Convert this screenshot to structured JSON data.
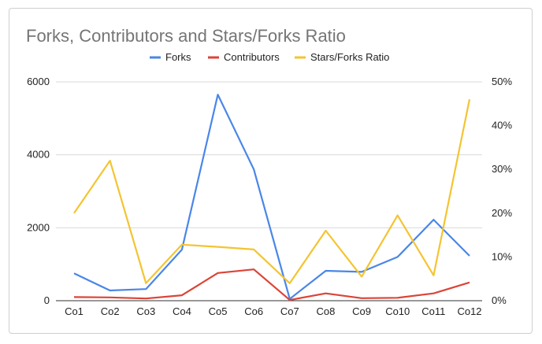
{
  "chart_data": {
    "type": "line",
    "title": "Forks, Contributors and Stars/Forks Ratio",
    "categories": [
      "Co1",
      "Co2",
      "Co3",
      "Co4",
      "Co5",
      "Co6",
      "Co7",
      "Co8",
      "Co9",
      "Co10",
      "Co11",
      "Co12"
    ],
    "series": [
      {
        "name": "Forks",
        "axis": "left",
        "color": "#4a86e8",
        "values": [
          750,
          280,
          320,
          1400,
          5650,
          3600,
          50,
          820,
          790,
          1200,
          2220,
          1230
        ]
      },
      {
        "name": "Contributors",
        "axis": "left",
        "color": "#db4437",
        "values": [
          100,
          90,
          60,
          150,
          760,
          860,
          20,
          200,
          70,
          80,
          200,
          500
        ]
      },
      {
        "name": "Stars/Forks Ratio",
        "axis": "right",
        "color": "#f4c431",
        "values": [
          0.2,
          0.32,
          0.04,
          0.128,
          0.123,
          0.117,
          0.04,
          0.16,
          0.055,
          0.195,
          0.058,
          0.46
        ]
      }
    ],
    "y_left": {
      "ylim": [
        0,
        6000
      ],
      "ticks": [
        "0",
        "2000",
        "4000",
        "6000"
      ]
    },
    "y_right": {
      "ylim": [
        0,
        0.5
      ],
      "ticks": [
        "0%",
        "10%",
        "20%",
        "30%",
        "40%",
        "50%"
      ]
    },
    "grid": true,
    "legend_position": "top"
  }
}
